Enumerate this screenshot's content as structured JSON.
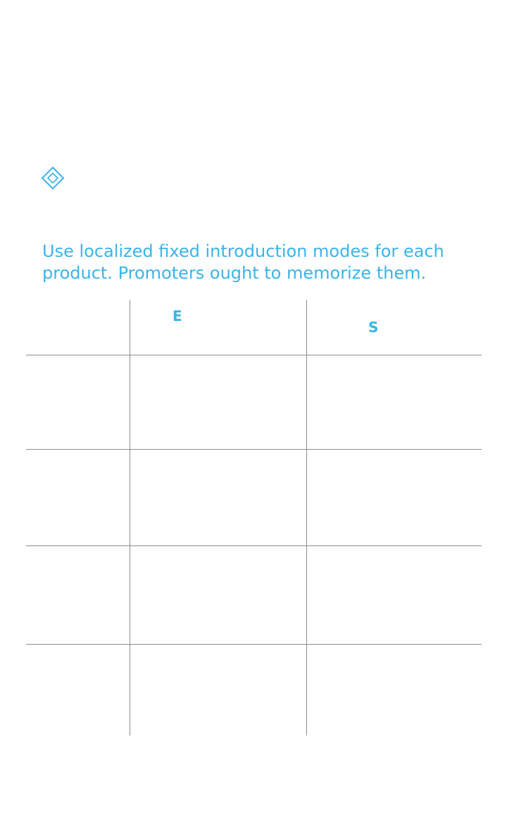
{
  "title": "",
  "subtitle": "",
  "caption": "",
  "lead": "Use localized fixed introduction modes for each product. Promoters ought to memorize them.",
  "icons": {
    "subtitle_icon": "diamond-icon"
  },
  "colors": {
    "accent": "#3bb4e8",
    "rule": "#8c8c8c"
  },
  "table": {
    "headers": {
      "col0": "",
      "col1_letter": "E",
      "col1_rest": "",
      "col2_letter": "S",
      "col2_rest": ""
    },
    "rows": [
      {
        "label": "",
        "e": "",
        "s": ""
      },
      {
        "label": "",
        "e": "",
        "s": ""
      },
      {
        "label": "",
        "e": "",
        "s": ""
      },
      {
        "label": "",
        "e": "",
        "s": ""
      }
    ]
  }
}
